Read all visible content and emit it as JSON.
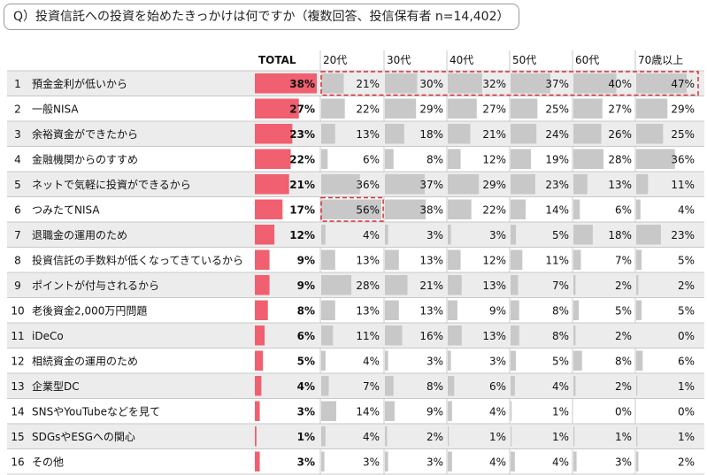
{
  "title": "Q）投資信託への投資を始めたきっかけは何ですか（複数回答、投信保有者 n=14,402）",
  "colors": {
    "total_bar": "#f06070",
    "age_bar": "#c8c8c8",
    "highlight": "#d9303a",
    "row_band": "#ececec"
  },
  "chart_data": {
    "type": "table",
    "unit": "%",
    "columns": [
      "TOTAL",
      "20代",
      "30代",
      "40代",
      "50代",
      "60代",
      "70歳以上"
    ],
    "highlights": [
      {
        "row": 0,
        "columns": [
          1,
          2,
          3,
          4,
          5,
          6
        ]
      },
      {
        "row": 5,
        "columns": [
          1
        ]
      }
    ],
    "rows": [
      {
        "no": "1",
        "label": "預金金利が低いから",
        "values": [
          38,
          21,
          30,
          32,
          37,
          40,
          47
        ]
      },
      {
        "no": "2",
        "label": "一般NISA",
        "values": [
          27,
          22,
          29,
          27,
          25,
          27,
          29
        ]
      },
      {
        "no": "3",
        "label": "余裕資金ができたから",
        "values": [
          23,
          13,
          18,
          21,
          24,
          26,
          25
        ]
      },
      {
        "no": "4",
        "label": "金融機関からのすすめ",
        "values": [
          22,
          6,
          8,
          12,
          19,
          28,
          36
        ]
      },
      {
        "no": "5",
        "label": "ネットで気軽に投資ができるから",
        "values": [
          21,
          36,
          37,
          29,
          23,
          13,
          11
        ]
      },
      {
        "no": "6",
        "label": "つみたてNISA",
        "values": [
          17,
          56,
          38,
          22,
          14,
          6,
          4
        ]
      },
      {
        "no": "7",
        "label": "退職金の運用のため",
        "values": [
          12,
          4,
          3,
          3,
          5,
          18,
          23
        ]
      },
      {
        "no": "8",
        "label": "投資信託の手数料が低くなってきているから",
        "values": [
          9,
          13,
          13,
          12,
          11,
          7,
          5
        ]
      },
      {
        "no": "9",
        "label": "ポイントが付与されるから",
        "values": [
          9,
          28,
          21,
          13,
          7,
          2,
          2
        ]
      },
      {
        "no": "10",
        "label": "老後資金2,000万円問題",
        "values": [
          8,
          13,
          13,
          9,
          8,
          5,
          5
        ]
      },
      {
        "no": "11",
        "label": "iDeCo",
        "values": [
          6,
          11,
          16,
          13,
          8,
          2,
          0
        ]
      },
      {
        "no": "12",
        "label": "相続資金の運用のため",
        "values": [
          5,
          4,
          3,
          3,
          5,
          8,
          6
        ]
      },
      {
        "no": "13",
        "label": "企業型DC",
        "values": [
          4,
          7,
          8,
          6,
          4,
          2,
          1
        ]
      },
      {
        "no": "14",
        "label": "SNSやYouTubeなどを見て",
        "values": [
          3,
          14,
          9,
          4,
          1,
          0,
          0
        ]
      },
      {
        "no": "15",
        "label": "SDGsやESGへの関心",
        "values": [
          1,
          4,
          2,
          1,
          1,
          1,
          1
        ]
      },
      {
        "no": "16",
        "label": "その他",
        "values": [
          3,
          3,
          3,
          4,
          4,
          3,
          2
        ]
      }
    ]
  }
}
